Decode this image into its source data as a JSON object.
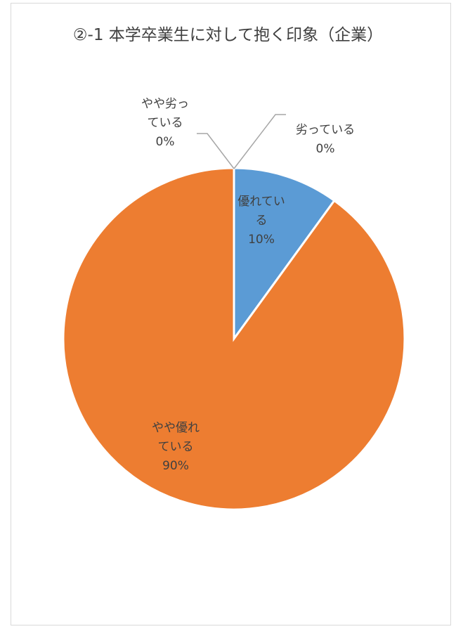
{
  "chart_data": {
    "type": "pie",
    "title": "②-1 本学卒業生に対して抱く印象（企業）",
    "start_angle_deg": 0,
    "direction": "clockwise",
    "slices": [
      {
        "name": "優れている",
        "value": 10,
        "label_lines": [
          "優れてい",
          "る"
        ],
        "pct": "10%",
        "color": "#5b9bd5",
        "label_color": "#404040"
      },
      {
        "name": "やや優れている",
        "value": 90,
        "label_lines": [
          "やや優れ",
          "ている"
        ],
        "pct": "90%",
        "color": "#ed7d31",
        "label_color": "#404040"
      },
      {
        "name": "やや劣っている",
        "value": 0,
        "label_lines": [
          "やや劣っ",
          "ている"
        ],
        "pct": "0%",
        "color": "#a5a5a5",
        "label_color": "#404040"
      },
      {
        "name": "劣っている",
        "value": 0,
        "label_lines": [
          "劣っている"
        ],
        "pct": "0%",
        "color": "#ffc000",
        "label_color": "#404040"
      }
    ],
    "legend": "none"
  }
}
